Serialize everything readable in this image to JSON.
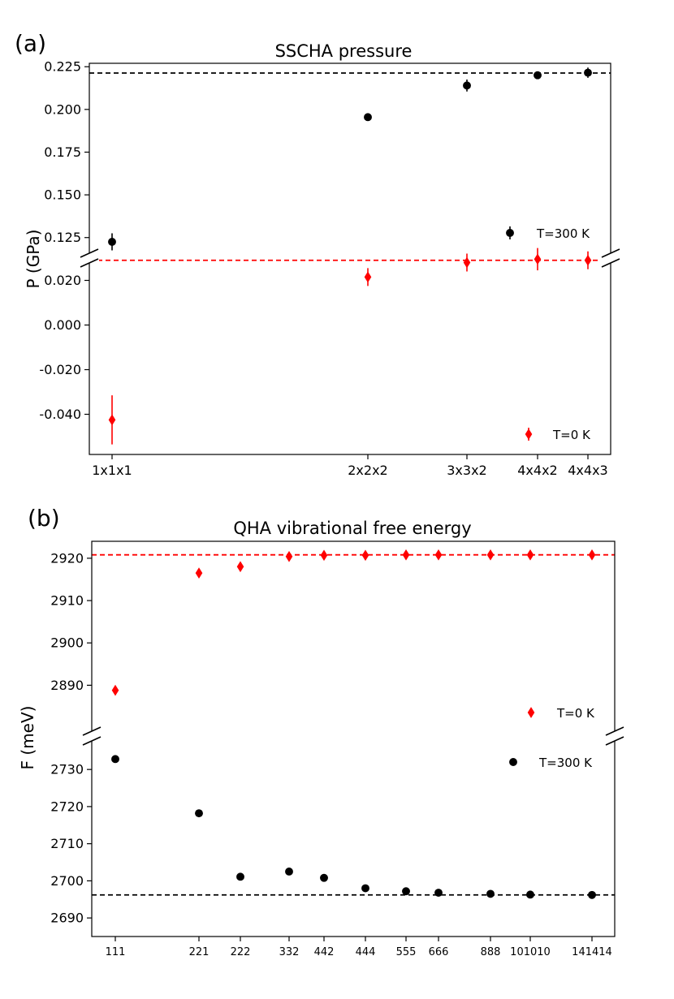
{
  "chart_data": [
    {
      "type": "scatter",
      "panel_label": "(a)",
      "title": "SSCHA pressure",
      "ylabel": "P (GPa)",
      "xlabel": "",
      "broken_y_axis": true,
      "categories": [
        "1x1x1",
        "2x2x2",
        "3x3x2",
        "4x4x2",
        "4x4x3"
      ],
      "upper": {
        "ylim": [
          0.113,
          0.227
        ],
        "yticks": [
          0.125,
          0.15,
          0.175,
          0.2,
          0.225
        ],
        "ytick_labels": [
          "0.125",
          "0.150",
          "0.175",
          "0.200",
          "0.225"
        ]
      },
      "lower": {
        "ylim": [
          -0.058,
          0.03
        ],
        "yticks": [
          -0.04,
          -0.02,
          0.0,
          0.02
        ],
        "ytick_labels": [
          "-0.040",
          "-0.020",
          "0.000",
          "0.020"
        ]
      },
      "series": [
        {
          "name": "T=300 K",
          "axis": "upper",
          "color": "#000000",
          "marker": "circle",
          "values": [
            0.1225,
            0.1955,
            0.214,
            0.22,
            0.2215
          ],
          "errors": [
            0.005,
            0.002,
            0.0035,
            0.002,
            0.003
          ],
          "reference_line": 0.2213
        },
        {
          "name": "T=0 K",
          "axis": "lower",
          "color": "#ff0000",
          "marker": "diamond",
          "values": [
            -0.0425,
            0.0215,
            0.028,
            0.0295,
            0.029
          ],
          "errors": [
            0.011,
            0.004,
            0.004,
            0.005,
            0.004
          ],
          "reference_line": 0.029
        }
      ]
    },
    {
      "type": "scatter",
      "panel_label": "(b)",
      "title": "QHA vibrational free energy",
      "ylabel": "F (meV)",
      "xlabel": "",
      "broken_y_axis": true,
      "categories": [
        "111",
        "221",
        "222",
        "332",
        "442",
        "444",
        "555",
        "666",
        "888",
        "101010",
        "141414"
      ],
      "upper": {
        "ylim": [
          2878,
          2924
        ],
        "yticks": [
          2890,
          2900,
          2910,
          2920
        ],
        "ytick_labels": [
          "2890",
          "2900",
          "2910",
          "2920"
        ]
      },
      "lower": {
        "ylim": [
          2685,
          2739
        ],
        "yticks": [
          2690,
          2700,
          2710,
          2720,
          2730
        ],
        "ytick_labels": [
          "2690",
          "2700",
          "2710",
          "2720",
          "2730"
        ]
      },
      "series": [
        {
          "name": "T=0 K",
          "axis": "upper",
          "color": "#ff0000",
          "marker": "diamond",
          "values": [
            2888.8,
            2916.5,
            2918.0,
            2920.4,
            2920.7,
            2920.7,
            2920.8,
            2920.8,
            2920.8,
            2920.8,
            2920.8
          ],
          "reference_line": 2920.8
        },
        {
          "name": "T=300 K",
          "axis": "lower",
          "color": "#000000",
          "marker": "circle",
          "values": [
            2732.8,
            2718.2,
            2701.1,
            2702.5,
            2700.8,
            2698.0,
            2697.2,
            2696.8,
            2696.5,
            2696.3,
            2696.2
          ],
          "reference_line": 2696.2
        }
      ]
    }
  ]
}
